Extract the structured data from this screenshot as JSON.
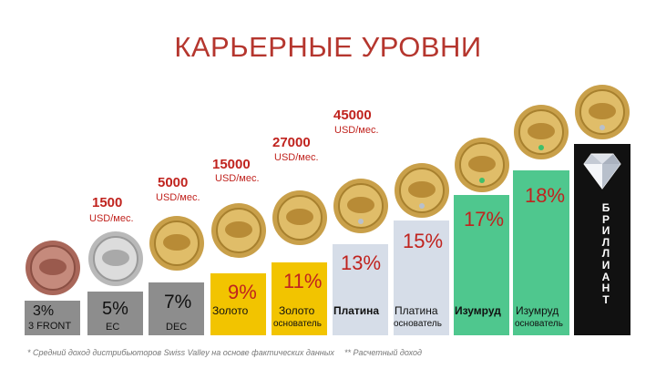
{
  "title": "КАРЬЕРНЫЕ УРОВНИ",
  "unit_label": "USD/мес.",
  "income": [
    {
      "amount": "1500"
    },
    {
      "amount": "5000"
    },
    {
      "amount": "15000"
    },
    {
      "amount": "27000"
    },
    {
      "amount": "45000"
    }
  ],
  "levels": [
    {
      "percent": "3%",
      "name": "3 FRONT"
    },
    {
      "percent": "5%",
      "name": "EC"
    },
    {
      "percent": "7%",
      "name": "DEC"
    },
    {
      "percent": "9%",
      "name": "Золото"
    },
    {
      "percent": "11%",
      "name": "Золото",
      "sub": "основатель"
    },
    {
      "percent": "13%",
      "name": "Платина"
    },
    {
      "percent": "15%",
      "name": "Платина",
      "sub": "основатель"
    },
    {
      "percent": "17%",
      "name": "Изумруд"
    },
    {
      "percent": "18%",
      "name": "Изумруд",
      "sub": "основатель"
    }
  ],
  "top_level_letters": [
    "Б",
    "Р",
    "И",
    "Л",
    "Л",
    "И",
    "А",
    "Н",
    "Т"
  ],
  "footnotes": {
    "note1": "* Средний доход дистрибьюторов Swiss Valley на основе фактических данных",
    "note2": "** Расчетный доход"
  },
  "colors": {
    "title": "#b5362e",
    "accent_red": "#c0231e",
    "gray_box": "#8d8d8d",
    "gold": "#f2c400",
    "platinum": "#d6dde8",
    "emerald": "#4fc78e",
    "brilliant": "#111111"
  }
}
